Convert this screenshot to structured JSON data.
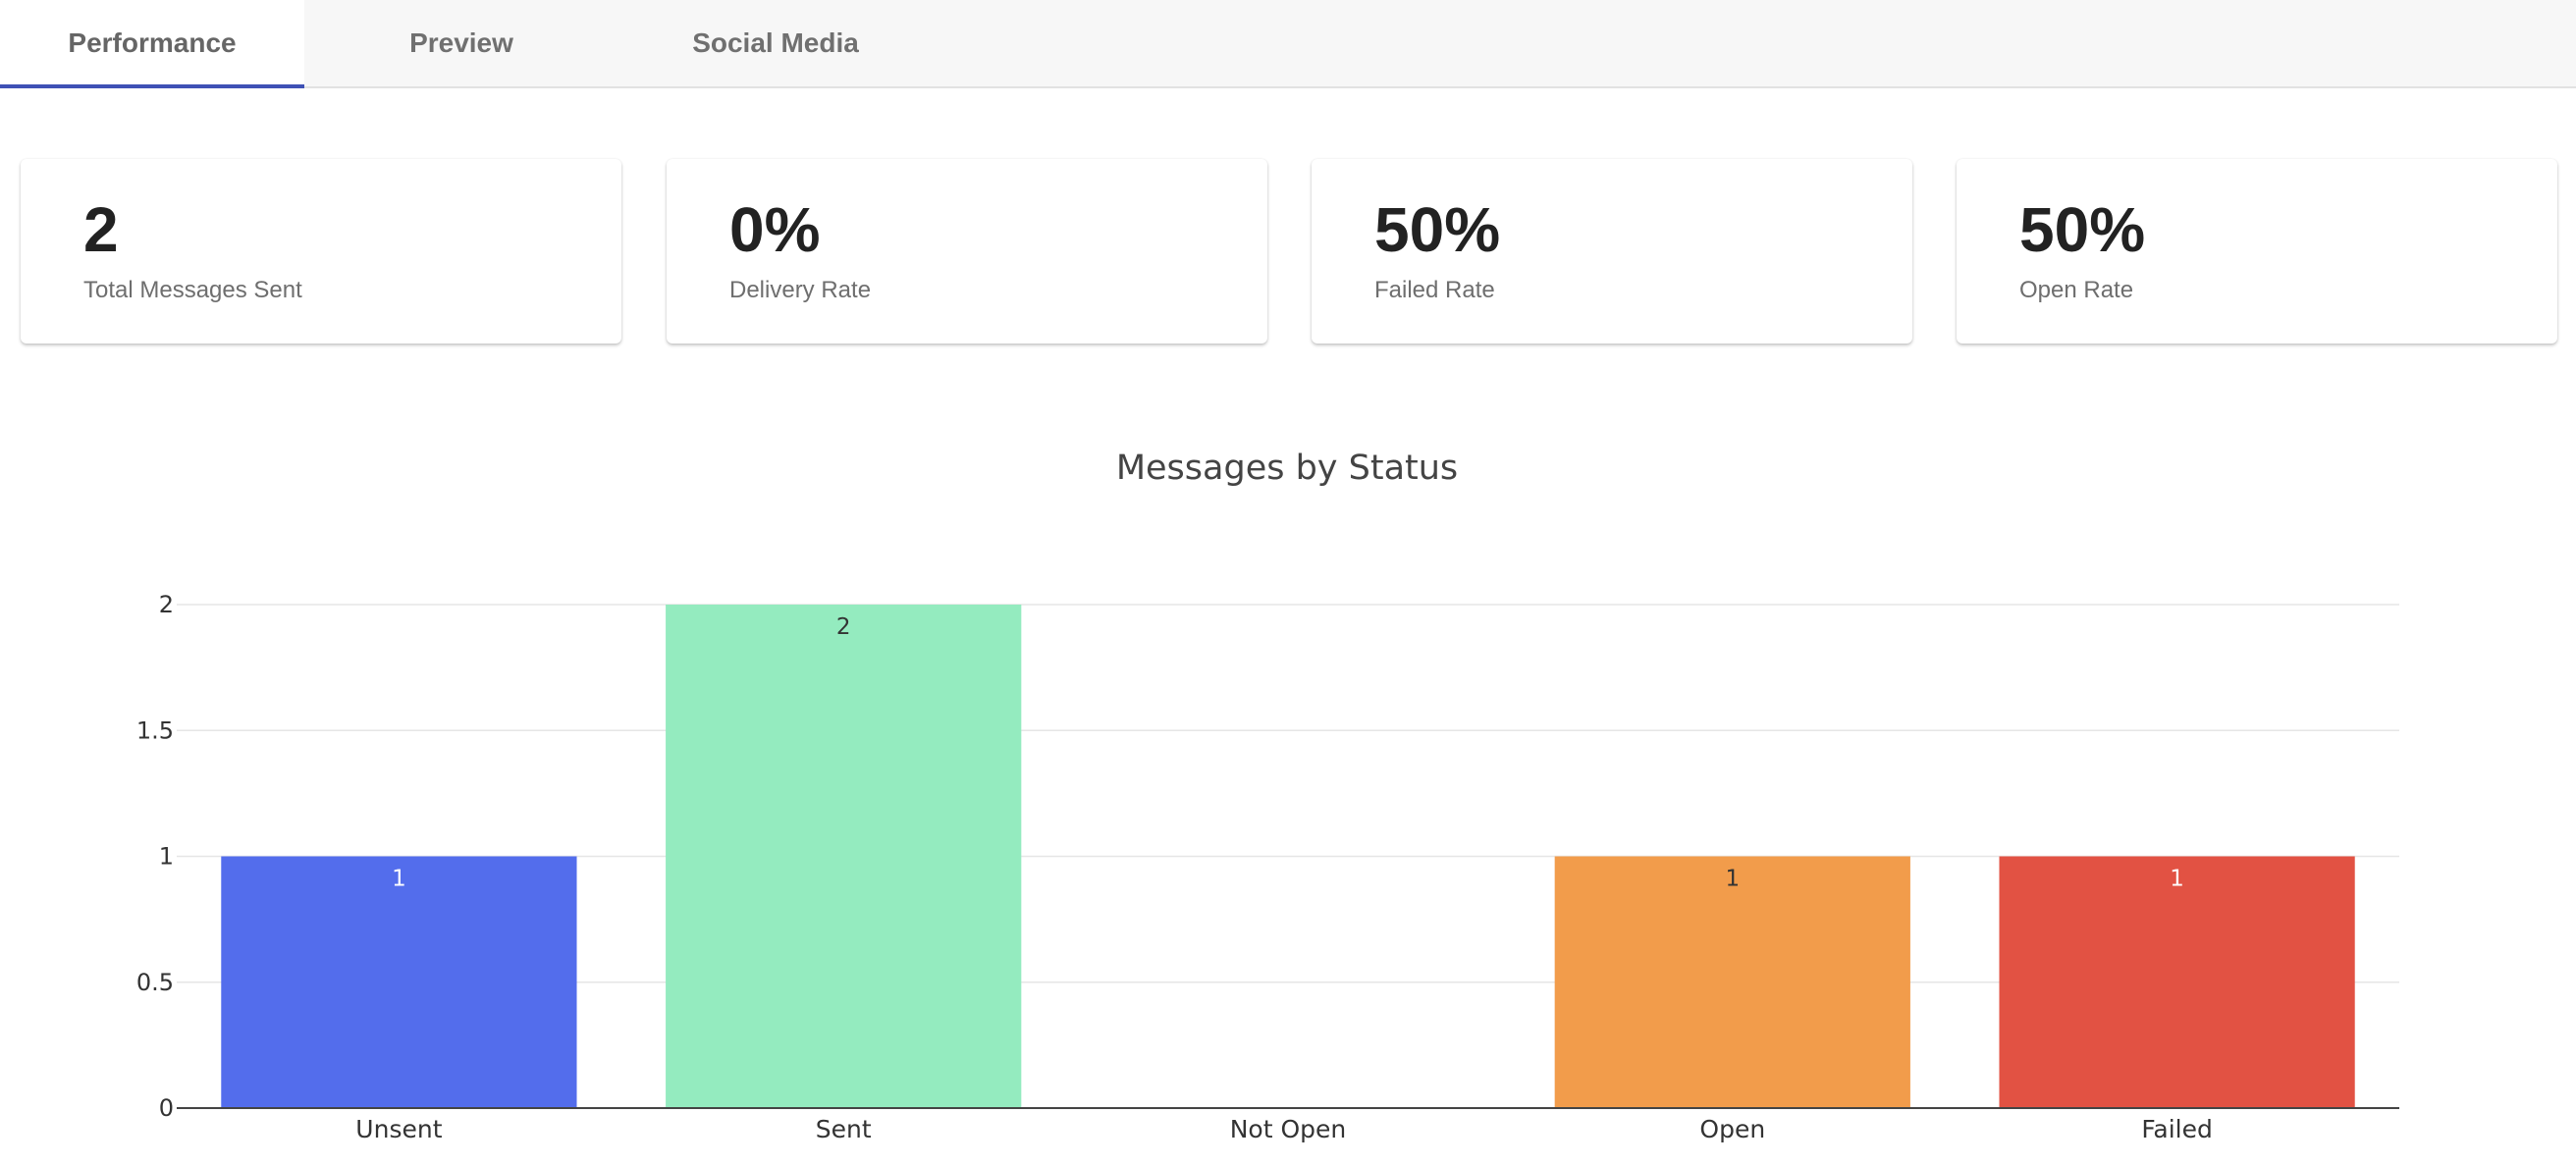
{
  "tabs": [
    {
      "label": "Performance",
      "active": true
    },
    {
      "label": "Preview",
      "active": false
    },
    {
      "label": "Social Media",
      "active": false
    }
  ],
  "stats": [
    {
      "value": "2",
      "label": "Total Messages Sent"
    },
    {
      "value": "0%",
      "label": "Delivery Rate"
    },
    {
      "value": "50%",
      "label": "Failed Rate"
    },
    {
      "value": "50%",
      "label": "Open Rate"
    }
  ],
  "chart_data": {
    "type": "bar",
    "title": "Messages by Status",
    "xlabel": "",
    "ylabel": "",
    "categories": [
      "Unsent",
      "Sent",
      "Not Open",
      "Open",
      "Failed"
    ],
    "values": [
      1,
      2,
      0,
      1,
      1
    ],
    "data_labels": [
      "1",
      "2",
      "",
      "1",
      "1"
    ],
    "colors": [
      "#536dec",
      "#94ebbf",
      "#ffffff",
      "#f29c4b",
      "#e25243"
    ],
    "label_colors": [
      "#ffffff",
      "#333333",
      "#333333",
      "#333333",
      "#ffffff"
    ],
    "ylim": [
      0,
      2
    ],
    "yticks": [
      0,
      0.5,
      1,
      1.5,
      2
    ],
    "ytick_labels": [
      "0",
      "0.5",
      "1",
      "1.5",
      "2"
    ],
    "grid": true,
    "legend": "none"
  }
}
